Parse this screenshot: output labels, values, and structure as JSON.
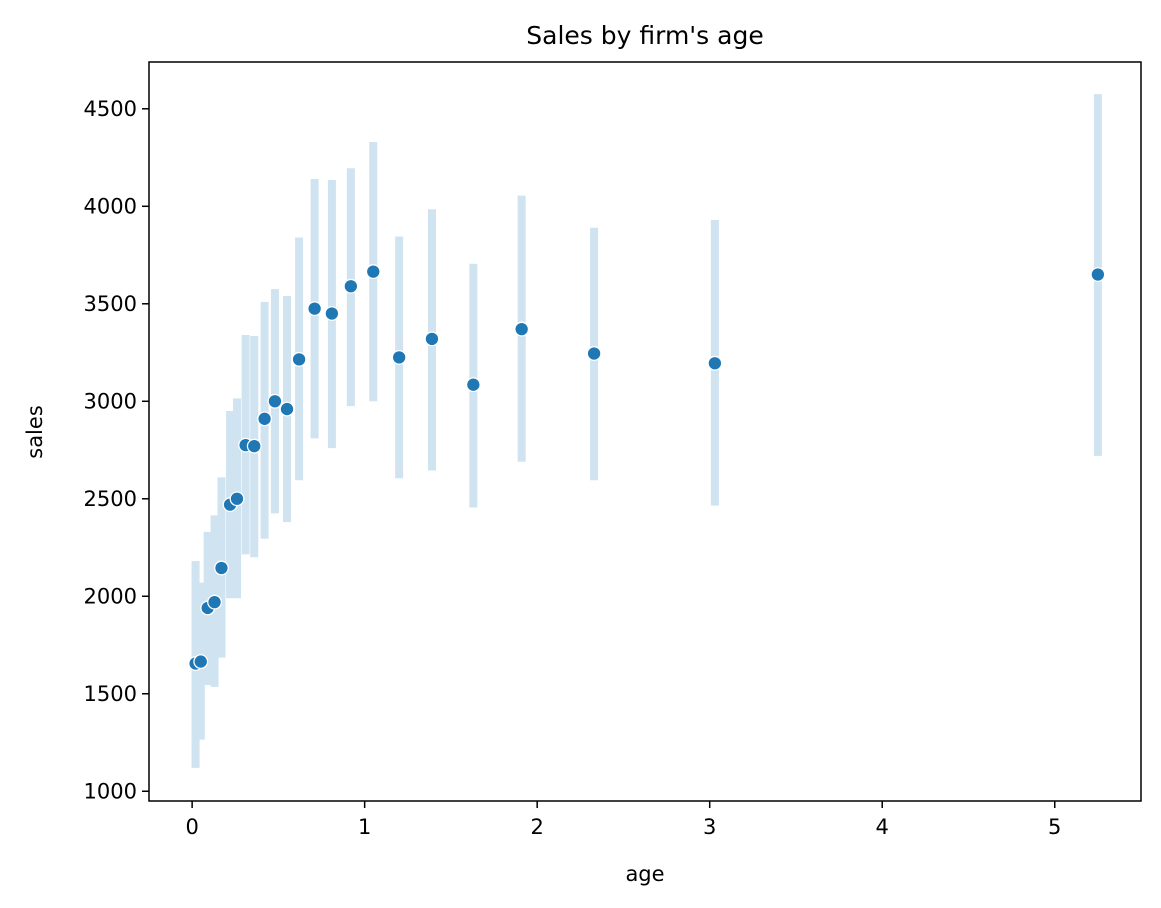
{
  "chart_data": {
    "type": "scatter",
    "title": "Sales by firm's age",
    "xlabel": "age",
    "ylabel": "sales",
    "xlim": [
      -0.25,
      5.5
    ],
    "ylim": [
      950,
      4740
    ],
    "xticks": [
      0,
      1,
      2,
      3,
      4,
      5
    ],
    "yticks": [
      1000,
      1500,
      2000,
      2500,
      3000,
      3500,
      4000,
      4500
    ],
    "grid": false,
    "legend": "none",
    "colors": {
      "point": "#1f77b4",
      "point_edge": "#ffffff",
      "errorbar": "#cfe3f0",
      "axes": "#000000"
    },
    "series": [
      {
        "points": [
          {
            "x": 0.02,
            "y": 1655,
            "ymin": 1120,
            "ymax": 2180
          },
          {
            "x": 0.05,
            "y": 1665,
            "ymin": 1265,
            "ymax": 2070
          },
          {
            "x": 0.09,
            "y": 1940,
            "ymin": 1545,
            "ymax": 2330
          },
          {
            "x": 0.13,
            "y": 1970,
            "ymin": 1535,
            "ymax": 2415
          },
          {
            "x": 0.17,
            "y": 2145,
            "ymin": 1685,
            "ymax": 2610
          },
          {
            "x": 0.22,
            "y": 2470,
            "ymin": 1990,
            "ymax": 2950
          },
          {
            "x": 0.26,
            "y": 2500,
            "ymin": 1990,
            "ymax": 3015
          },
          {
            "x": 0.31,
            "y": 2775,
            "ymin": 2215,
            "ymax": 3340
          },
          {
            "x": 0.36,
            "y": 2770,
            "ymin": 2200,
            "ymax": 3335
          },
          {
            "x": 0.42,
            "y": 2910,
            "ymin": 2295,
            "ymax": 3510
          },
          {
            "x": 0.48,
            "y": 3000,
            "ymin": 2425,
            "ymax": 3575
          },
          {
            "x": 0.55,
            "y": 2960,
            "ymin": 2380,
            "ymax": 3540
          },
          {
            "x": 0.62,
            "y": 3215,
            "ymin": 2595,
            "ymax": 3840
          },
          {
            "x": 0.71,
            "y": 3475,
            "ymin": 2810,
            "ymax": 4140
          },
          {
            "x": 0.81,
            "y": 3450,
            "ymin": 2760,
            "ymax": 4135
          },
          {
            "x": 0.92,
            "y": 3590,
            "ymin": 2975,
            "ymax": 4195
          },
          {
            "x": 1.05,
            "y": 3665,
            "ymin": 3000,
            "ymax": 4330
          },
          {
            "x": 1.2,
            "y": 3225,
            "ymin": 2605,
            "ymax": 3845
          },
          {
            "x": 1.39,
            "y": 3320,
            "ymin": 2645,
            "ymax": 3985
          },
          {
            "x": 1.63,
            "y": 3085,
            "ymin": 2455,
            "ymax": 3705
          },
          {
            "x": 1.91,
            "y": 3370,
            "ymin": 2690,
            "ymax": 4055
          },
          {
            "x": 2.33,
            "y": 3245,
            "ymin": 2595,
            "ymax": 3890
          },
          {
            "x": 3.03,
            "y": 3195,
            "ymin": 2465,
            "ymax": 3930
          },
          {
            "x": 5.25,
            "y": 3650,
            "ymin": 2720,
            "ymax": 4575
          }
        ]
      }
    ]
  }
}
